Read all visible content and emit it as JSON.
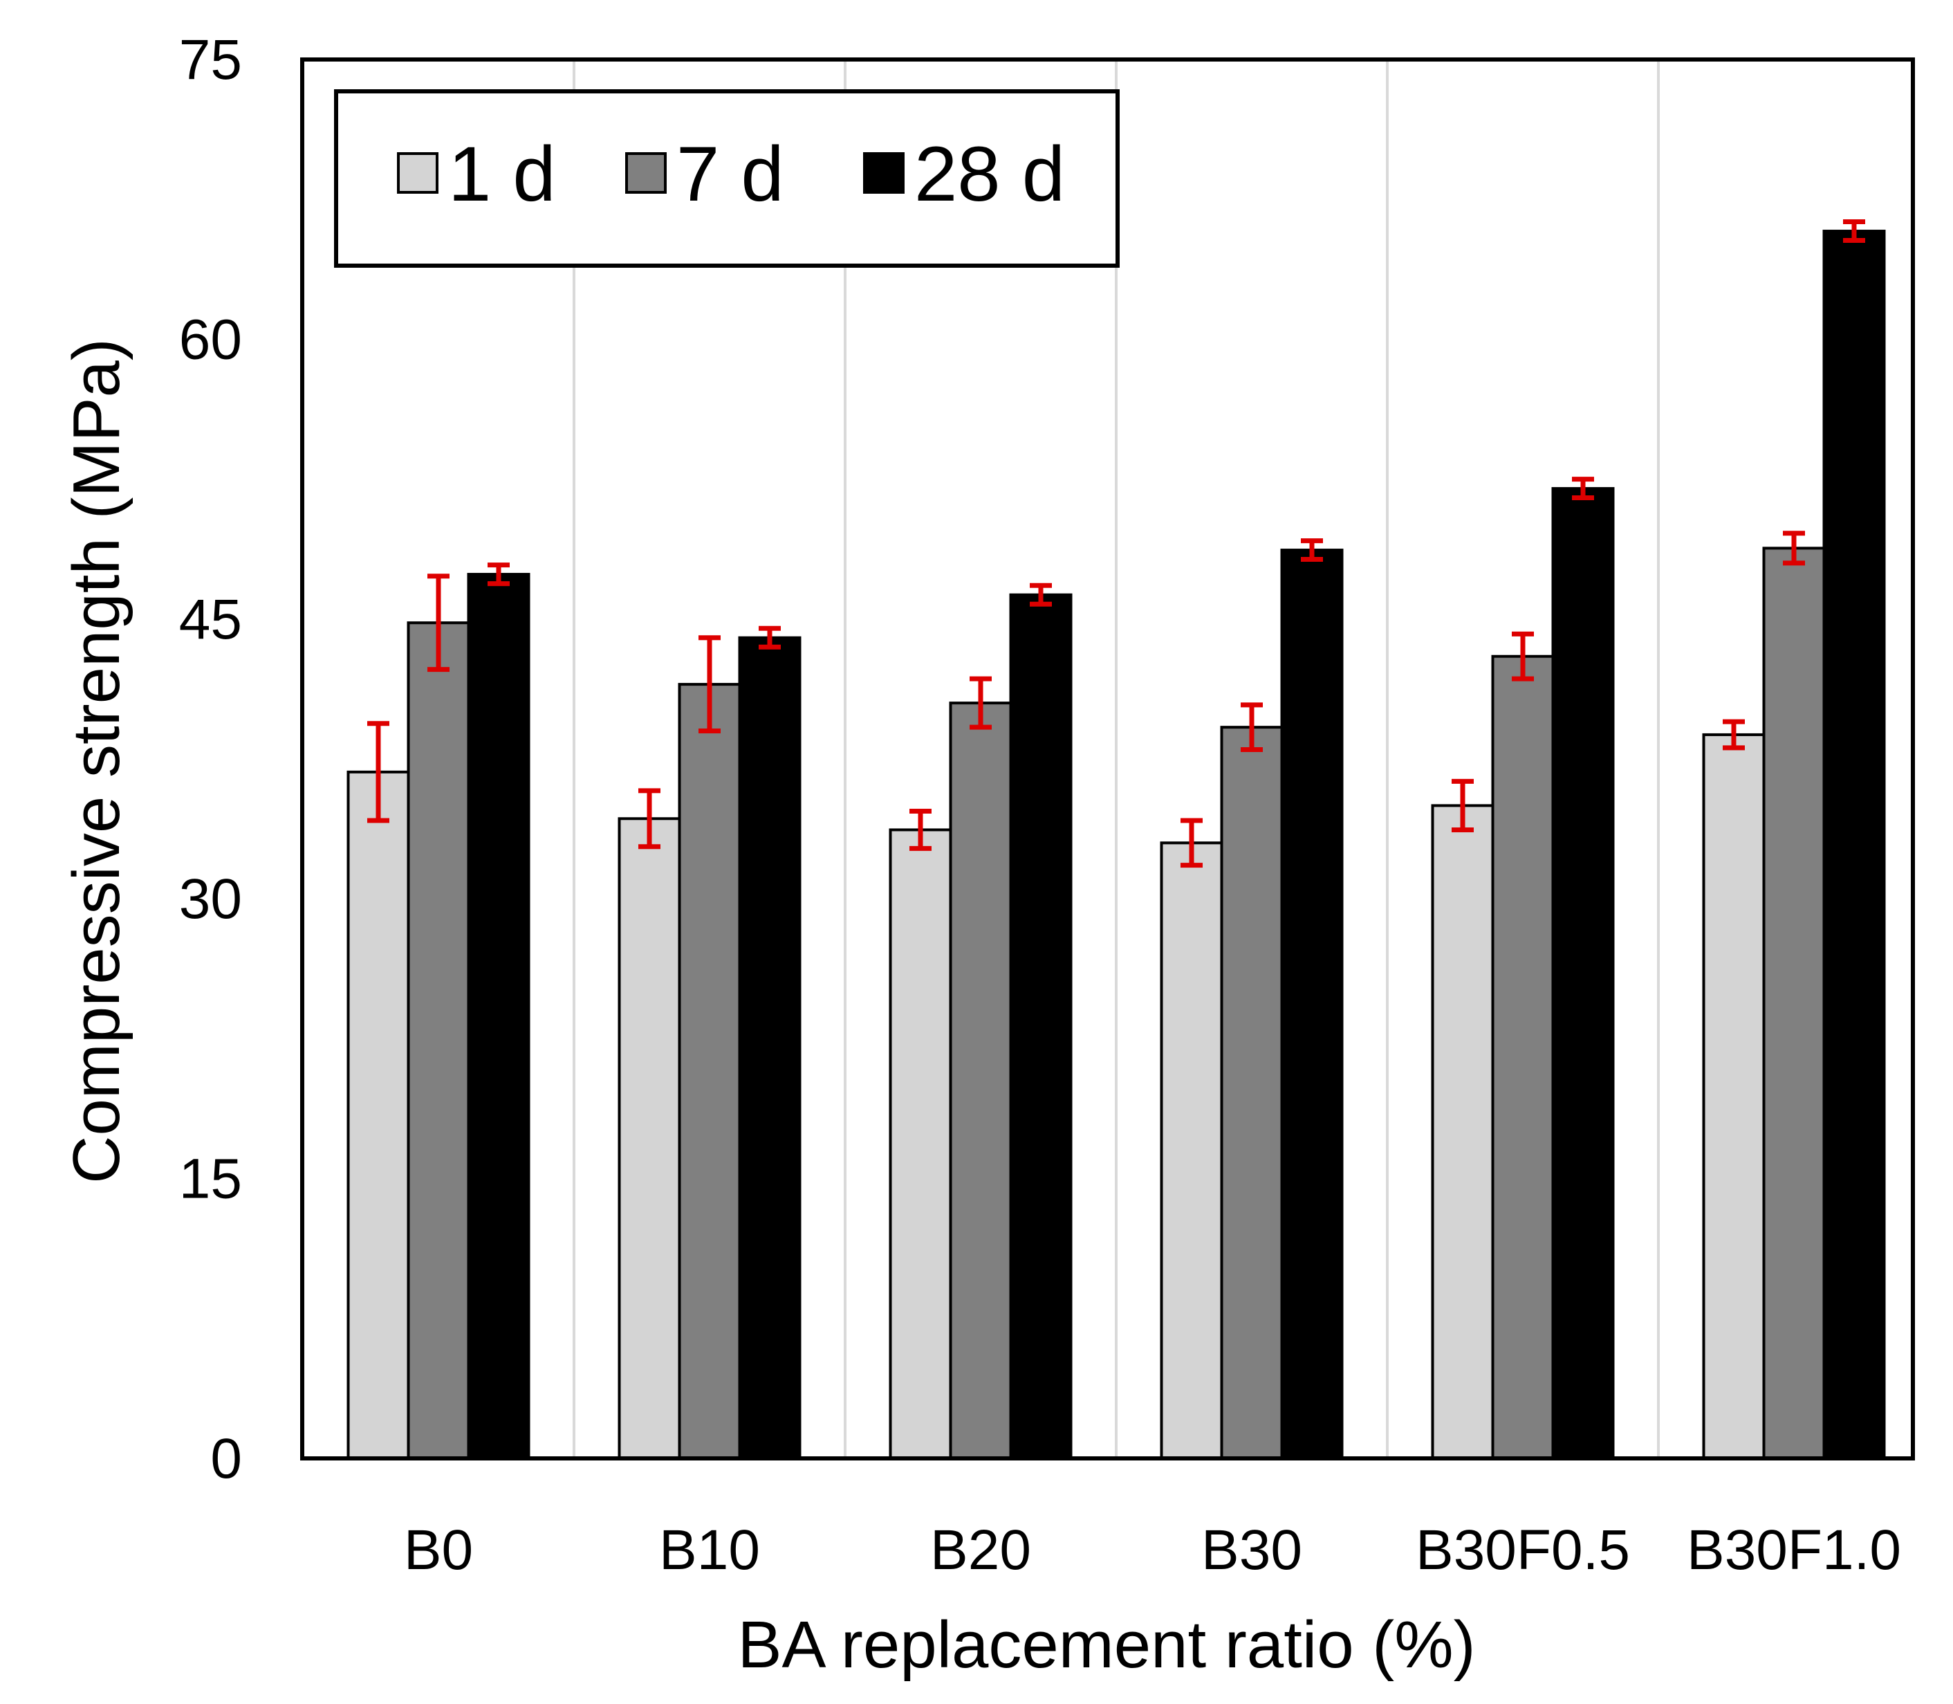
{
  "chart_data": {
    "type": "bar",
    "title": "",
    "xlabel": "BA replacement ratio (%)",
    "ylabel": "Compressive strength (MPa)",
    "ylim": [
      0,
      75
    ],
    "yticks": [
      0,
      15,
      30,
      45,
      60,
      75
    ],
    "categories": [
      "B0",
      "B10",
      "B20",
      "B30",
      "B30F0.5",
      "B30F1.0"
    ],
    "series": [
      {
        "name": "1 d",
        "color": "#d4d4d4",
        "values": [
          36.8,
          34.3,
          33.7,
          33.0,
          35.0,
          38.8
        ],
        "errors": [
          2.6,
          1.5,
          1.0,
          1.2,
          1.3,
          0.7
        ]
      },
      {
        "name": "7 d",
        "color": "#808080",
        "values": [
          44.8,
          41.5,
          40.5,
          39.2,
          43.0,
          48.8
        ],
        "errors": [
          2.5,
          2.5,
          1.3,
          1.2,
          1.2,
          0.8
        ]
      },
      {
        "name": "28 d",
        "color": "#000000",
        "values": [
          47.4,
          44.0,
          46.3,
          48.7,
          52.0,
          65.8
        ],
        "errors": [
          0.5,
          0.5,
          0.5,
          0.5,
          0.5,
          0.5
        ]
      }
    ],
    "error_bar_color": "#dd0000",
    "legend_position": "top-left",
    "grid": "vertical separators between categories"
  }
}
